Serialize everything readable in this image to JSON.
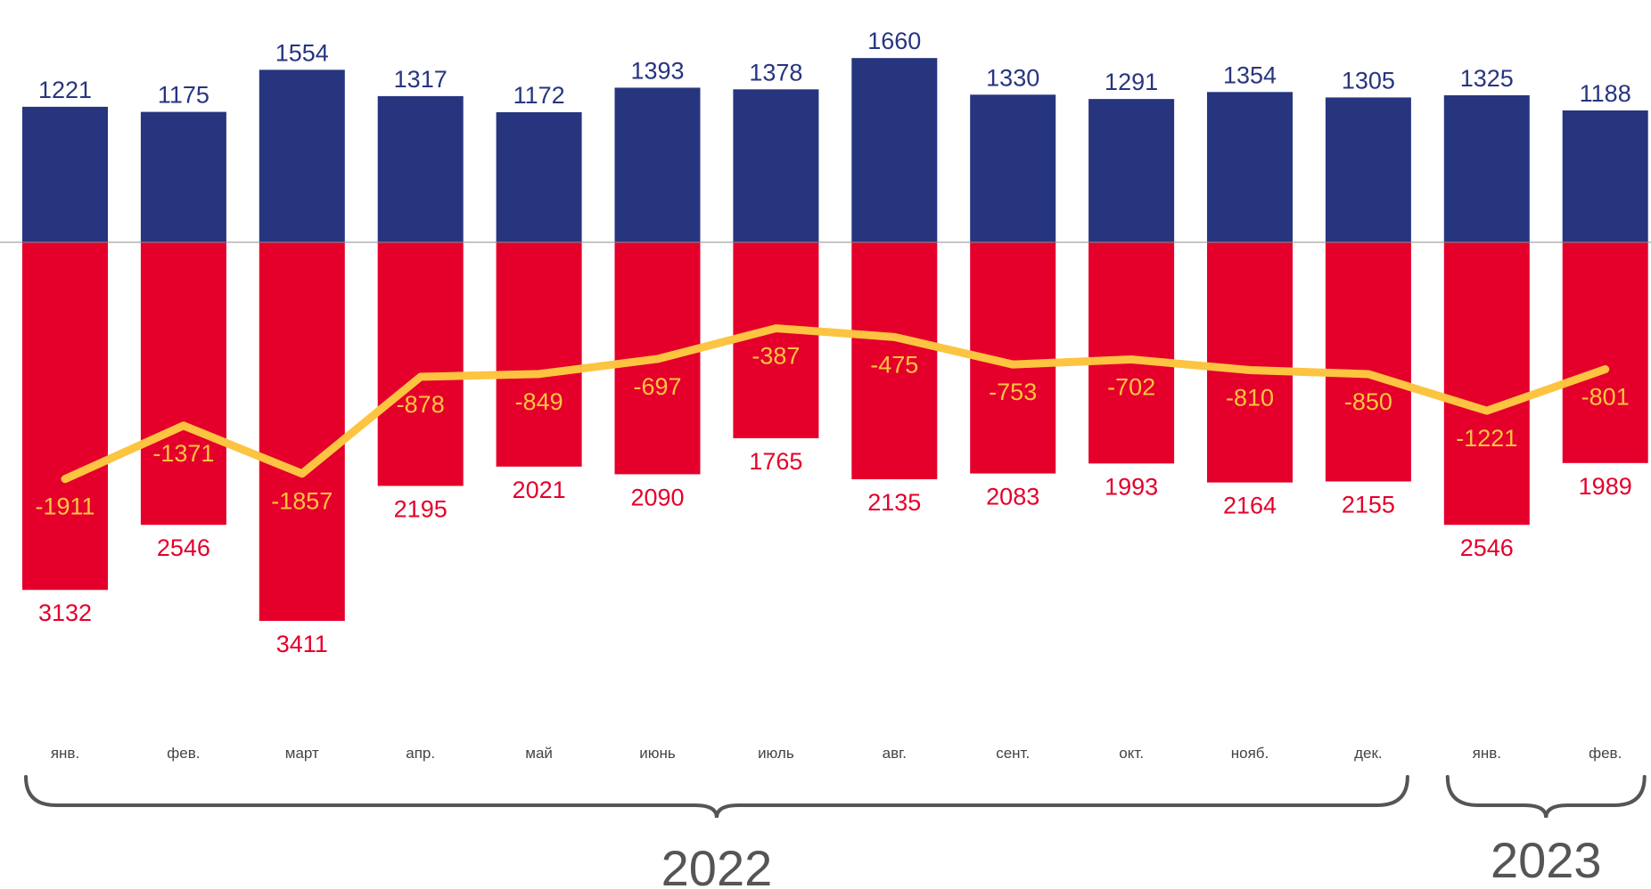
{
  "chart_data": {
    "type": "bar",
    "categories": [
      "янв.",
      "фев.",
      "март",
      "апр.",
      "май",
      "июнь",
      "июль",
      "авг.",
      "сент.",
      "окт.",
      "нояб.",
      "дек.",
      "янв.",
      "фев."
    ],
    "series": [
      {
        "values": [
          1221,
          1175,
          1554,
          1317,
          1172,
          1393,
          1378,
          1660,
          1330,
          1291,
          1354,
          1305,
          1325,
          1188
        ],
        "color": "#27357f",
        "direction": "up"
      },
      {
        "values": [
          3132,
          2546,
          3411,
          2195,
          2021,
          2090,
          1765,
          2135,
          2083,
          1993,
          2164,
          2155,
          2546,
          1989
        ],
        "color": "#e4002b",
        "direction": "down"
      },
      {
        "type": "line",
        "values": [
          -1911,
          -1371,
          -1857,
          -878,
          -849,
          -697,
          -387,
          -475,
          -753,
          -702,
          -810,
          -850,
          -1221,
          -801
        ],
        "color": "#fcc440"
      }
    ],
    "groups": [
      {
        "label": "2022",
        "start": 0,
        "end": 11
      },
      {
        "label": "2023",
        "start": 12,
        "end": 13
      }
    ],
    "value_labels": true,
    "legend": "none",
    "grid": false
  }
}
